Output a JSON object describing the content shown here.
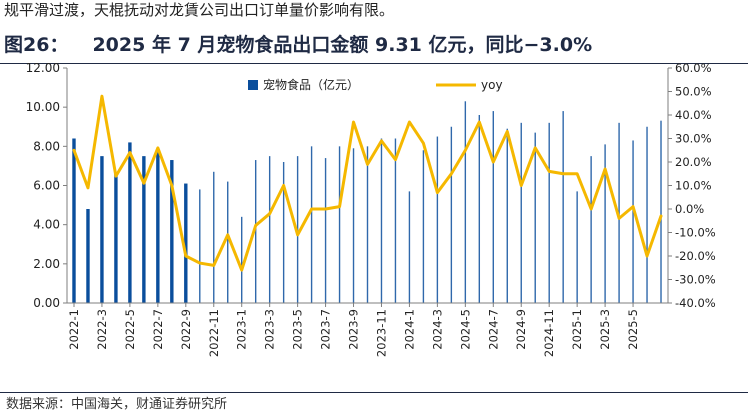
{
  "header": {
    "intro_text": "规平滑过渡，天棍抚动对龙賃公司出口订单量价影响有限。",
    "figure_number": "图26：",
    "figure_title": "2025 年 7 月宠物食品出口金额 9.31 亿元，同比−3.0%"
  },
  "footer": {
    "source": "数据来源：中国海关，财通证券研究所"
  },
  "colors": {
    "bar": "#0a4e9c",
    "line": "#f5b800",
    "axis": "#7f7f7f"
  },
  "chart_data": {
    "type": "bar",
    "title": "2025 年 7 月宠物食品出口金额 9.31 亿元，同比−3.0%",
    "x": [
      "2022-1",
      "2022-2",
      "2022-3",
      "2022-4",
      "2022-5",
      "2022-6",
      "2022-7",
      "2022-8",
      "2022-9",
      "2022-10",
      "2022-11",
      "2022-12",
      "2023-1",
      "2023-2",
      "2023-3",
      "2023-4",
      "2023-5",
      "2023-6",
      "2023-7",
      "2023-8",
      "2023-9",
      "2023-10",
      "2023-11",
      "2023-12",
      "2024-1",
      "2024-2",
      "2024-3",
      "2024-4",
      "2024-5",
      "2024-6",
      "2024-7",
      "2024-8",
      "2024-9",
      "2024-10",
      "2024-11",
      "2024-12",
      "2025-1",
      "2025-2",
      "2025-3",
      "2025-4",
      "2025-5",
      "2025-6",
      "2025-7"
    ],
    "x_tick_labels": [
      "2022-1",
      "2022-3",
      "2022-5",
      "2022-7",
      "2022-9",
      "2022-11",
      "2023-1",
      "2023-3",
      "2023-5",
      "2023-7",
      "2023-9",
      "2023-11",
      "2024-1",
      "2024-3",
      "2024-5",
      "2024-7",
      "2024-9",
      "2024-11",
      "2025-1",
      "2025-3",
      "2025-5"
    ],
    "series": [
      {
        "name": "宠物食品（亿元）",
        "type": "bar",
        "axis": "left",
        "values": [
          8.4,
          4.8,
          7.5,
          6.6,
          8.2,
          7.5,
          7.7,
          7.3,
          6.1,
          5.8,
          6.7,
          6.2,
          4.4,
          7.3,
          7.5,
          7.2,
          7.5,
          8.0,
          7.4,
          8.0,
          7.9,
          8.0,
          8.4,
          8.4,
          5.7,
          7.8,
          8.5,
          9.0,
          10.3,
          9.6,
          9.8,
          8.9,
          9.2,
          8.7,
          9.2,
          9.8,
          5.7,
          7.5,
          8.1,
          9.2,
          8.3,
          9.0,
          9.31
        ]
      },
      {
        "name": "yoy",
        "type": "line",
        "axis": "right",
        "values": [
          25,
          9,
          48,
          14,
          24,
          11,
          26,
          10,
          -20,
          -23,
          -24,
          -11,
          -26,
          -7,
          -2,
          10,
          -11,
          0,
          0,
          1,
          37,
          19,
          29,
          21,
          37,
          28,
          7,
          15,
          25,
          37,
          20,
          33,
          10,
          26,
          16,
          15,
          15,
          0,
          17,
          -4,
          1,
          -20,
          -3.0
        ]
      }
    ],
    "y_left": {
      "min": 0,
      "max": 12,
      "step": 2,
      "tick_labels": [
        "0.00",
        "2.00",
        "4.00",
        "6.00",
        "8.00",
        "10.00",
        "12.00"
      ]
    },
    "y_right": {
      "min": -40,
      "max": 60,
      "step": 10,
      "tick_labels": [
        "-40.0%",
        "-30.0%",
        "-20.0%",
        "-10.0%",
        "0.0%",
        "10.0%",
        "20.0%",
        "30.0%",
        "40.0%",
        "50.0%",
        "60.0%"
      ]
    },
    "legend_position": "top-center",
    "grid": false
  }
}
